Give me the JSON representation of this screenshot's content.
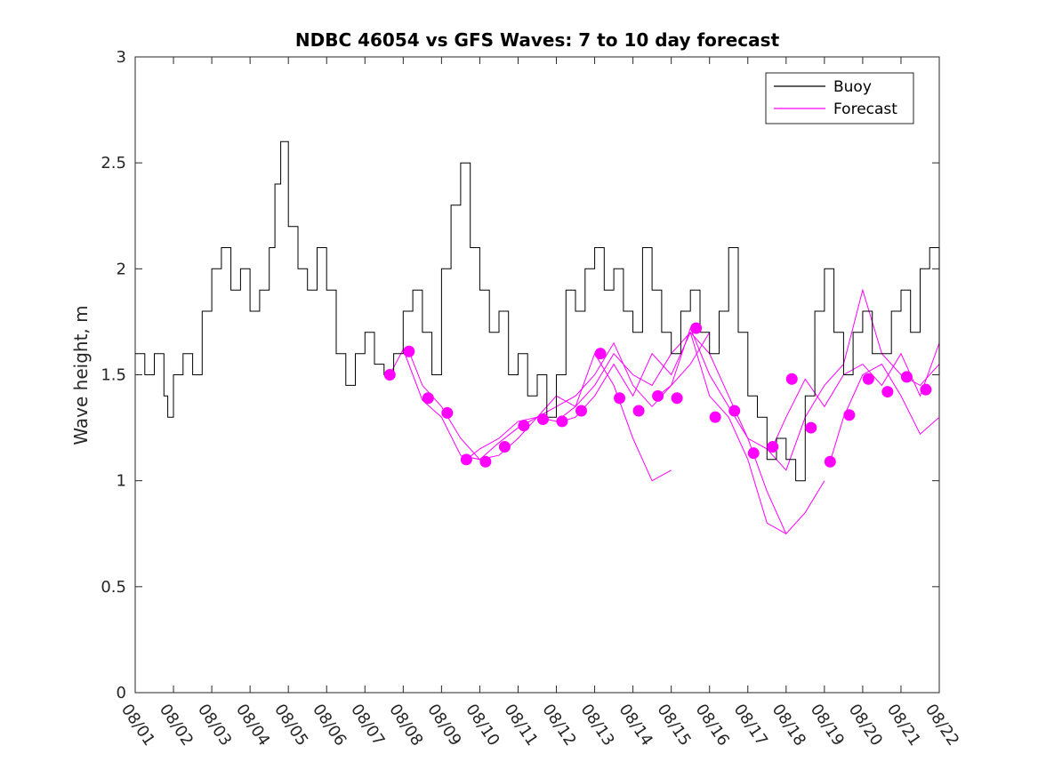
{
  "chart_data": {
    "type": "line",
    "title": "NDBC 46054 vs GFS Waves: 7 to 10 day forecast",
    "xlabel": "",
    "ylabel": "Wave height, m",
    "xlim": [
      0,
      21
    ],
    "ylim": [
      0,
      3
    ],
    "yticks": [
      0,
      0.5,
      1,
      1.5,
      2,
      2.5,
      3
    ],
    "ytick_labels": [
      "0",
      "0.5",
      "1",
      "1.5",
      "2",
      "2.5",
      "3"
    ],
    "xtick_labels": [
      "08/01",
      "08/02",
      "08/03",
      "08/04",
      "08/05",
      "08/06",
      "08/07",
      "08/08",
      "08/09",
      "08/10",
      "08/11",
      "08/12",
      "08/13",
      "08/14",
      "08/15",
      "08/16",
      "08/17",
      "08/18",
      "08/19",
      "08/20",
      "08/21",
      "08/22"
    ],
    "legend": {
      "position": "top-right",
      "entries": [
        "Buoy",
        "Forecast"
      ]
    },
    "colors": {
      "buoy": "#000000",
      "forecast": "#ff00ff",
      "axes": "#262626"
    },
    "series": [
      {
        "name": "Buoy",
        "x": [
          0,
          0.25,
          0.5,
          0.75,
          0.85,
          1,
          1.25,
          1.5,
          1.75,
          2,
          2.25,
          2.5,
          2.75,
          3,
          3.25,
          3.5,
          3.65,
          3.8,
          4,
          4.25,
          4.5,
          4.75,
          5,
          5.25,
          5.5,
          5.75,
          6,
          6.25,
          6.5,
          6.75,
          7,
          7.25,
          7.5,
          7.75,
          8,
          8.25,
          8.5,
          8.75,
          9,
          9.25,
          9.5,
          9.75,
          10,
          10.25,
          10.5,
          10.75,
          11,
          11.25,
          11.5,
          11.75,
          12,
          12.25,
          12.5,
          12.75,
          13,
          13.25,
          13.5,
          13.75,
          14,
          14.25,
          14.5,
          14.75,
          15,
          15.25,
          15.5,
          15.75,
          16,
          16.25,
          16.5,
          16.75,
          17,
          17.25,
          17.5,
          17.75,
          18,
          18.25,
          18.5,
          18.75,
          19,
          19.25,
          19.5,
          19.75,
          20,
          20.25,
          20.5,
          20.75,
          21
        ],
        "values": [
          1.6,
          1.5,
          1.6,
          1.4,
          1.3,
          1.5,
          1.6,
          1.5,
          1.8,
          2.0,
          2.1,
          1.9,
          2.0,
          1.8,
          1.9,
          2.1,
          2.4,
          2.6,
          2.2,
          2.0,
          1.9,
          2.1,
          1.9,
          1.6,
          1.45,
          1.6,
          1.7,
          1.55,
          1.5,
          1.6,
          1.8,
          1.9,
          1.7,
          1.5,
          2.0,
          2.3,
          2.5,
          2.1,
          1.9,
          1.7,
          1.8,
          1.5,
          1.6,
          1.4,
          1.5,
          1.3,
          1.5,
          1.9,
          1.8,
          2.0,
          2.1,
          1.9,
          2.0,
          1.8,
          1.7,
          2.1,
          1.9,
          1.7,
          1.6,
          1.8,
          1.9,
          1.7,
          1.6,
          1.8,
          2.1,
          1.7,
          1.4,
          1.3,
          1.1,
          1.2,
          1.1,
          1.0,
          1.4,
          1.8,
          2.0,
          1.7,
          1.5,
          1.7,
          1.8,
          1.6,
          1.6,
          1.8,
          1.9,
          1.7,
          2.0,
          2.1,
          1.5
        ]
      },
      {
        "name": "Forecast",
        "points_x": [
          6.65,
          7.15,
          7.65,
          8.15,
          8.65,
          9.15,
          9.65,
          10.15,
          10.65,
          11.15,
          11.65,
          12.15,
          12.65,
          13.15,
          13.65,
          14.15,
          14.65,
          15.15,
          15.65,
          16.15,
          16.65,
          17.15,
          17.65,
          18.15,
          18.65,
          19.15,
          19.65,
          20.15,
          20.65
        ],
        "points_y": [
          1.5,
          1.61,
          1.39,
          1.32,
          1.1,
          1.09,
          1.16,
          1.26,
          1.29,
          1.28,
          1.33,
          1.6,
          1.39,
          1.33,
          1.4,
          1.39,
          1.72,
          1.3,
          1.33,
          1.13,
          1.16,
          1.48,
          1.25,
          1.09,
          1.31,
          1.48,
          1.42,
          1.49,
          1.43
        ],
        "runs": [
          {
            "x": [
              6.65,
              7.0,
              7.5,
              8.0,
              8.5,
              9.0,
              9.5,
              10.0,
              10.5,
              11.0,
              11.5,
              12.0,
              12.5,
              13.0,
              13.5,
              14.0
            ],
            "y": [
              1.5,
              1.62,
              1.38,
              1.3,
              1.12,
              1.1,
              1.18,
              1.25,
              1.3,
              1.28,
              1.35,
              1.6,
              1.45,
              1.2,
              1.0,
              1.05
            ]
          },
          {
            "x": [
              7.15,
              7.5,
              8.0,
              8.5,
              9.0,
              9.5,
              10.0,
              10.5,
              11.0,
              11.5,
              12.0,
              12.5,
              13.0,
              13.5,
              14.0,
              14.5,
              15.0
            ],
            "y": [
              1.61,
              1.45,
              1.35,
              1.2,
              1.1,
              1.12,
              1.2,
              1.3,
              1.35,
              1.4,
              1.5,
              1.65,
              1.45,
              1.35,
              1.45,
              1.55,
              1.7
            ]
          },
          {
            "x": [
              8.65,
              9.0,
              9.5,
              10.0,
              10.5,
              11.0,
              11.5,
              12.0,
              12.5,
              13.0,
              13.5,
              14.0,
              14.5,
              15.0,
              15.5,
              16.0,
              16.5,
              17.0
            ],
            "y": [
              1.1,
              1.15,
              1.2,
              1.28,
              1.3,
              1.4,
              1.35,
              1.45,
              1.6,
              1.5,
              1.45,
              1.6,
              1.7,
              1.4,
              1.3,
              1.1,
              0.8,
              0.75
            ]
          },
          {
            "x": [
              11.15,
              11.5,
              12.0,
              12.5,
              13.0,
              13.5,
              14.0,
              14.5,
              15.0,
              15.5,
              16.0,
              16.5,
              17.0,
              17.5,
              18.0
            ],
            "y": [
              1.28,
              1.3,
              1.4,
              1.55,
              1.4,
              1.6,
              1.5,
              1.7,
              1.6,
              1.4,
              1.2,
              0.95,
              0.75,
              0.85,
              1.0
            ]
          },
          {
            "x": [
              13.65,
              14.0,
              14.5,
              15.0,
              15.5,
              16.0,
              16.5,
              17.0,
              17.5,
              18.0,
              18.5,
              19.0,
              19.5,
              20.0,
              20.5,
              21.0
            ],
            "y": [
              1.4,
              1.45,
              1.72,
              1.5,
              1.35,
              1.2,
              1.15,
              1.05,
              1.3,
              1.45,
              1.55,
              1.9,
              1.6,
              1.5,
              1.45,
              1.55
            ]
          },
          {
            "x": [
              16.65,
              17.0,
              17.5,
              18.0,
              18.5,
              19.0,
              19.5,
              20.0,
              20.5,
              21.0
            ],
            "y": [
              1.16,
              1.3,
              1.48,
              1.35,
              1.5,
              1.55,
              1.45,
              1.6,
              1.4,
              1.65
            ]
          },
          {
            "x": [
              18.15,
              18.5,
              19.0,
              19.5,
              20.0,
              20.5,
              21.0
            ],
            "y": [
              1.09,
              1.3,
              1.5,
              1.55,
              1.4,
              1.22,
              1.3
            ]
          }
        ]
      }
    ]
  }
}
